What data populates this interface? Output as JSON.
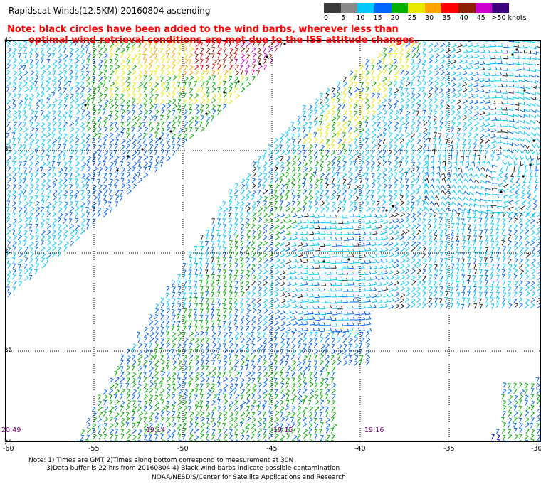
{
  "header": {
    "title": "Rapidscat Winds(12.5KM) 20160804 ascending",
    "note_line1": "Note: black circles have been added to the wind barbs, wherever less than",
    "note_line2": "optimal wind retrieval conditions are met due to the ISS attitude changes."
  },
  "legend": {
    "labels": [
      "0",
      "5",
      "10",
      "15",
      "20",
      "25",
      "30",
      "35",
      "40",
      "45",
      ">50 knots"
    ],
    "colors": [
      "#3a3a3a",
      "#8a8a8a",
      "#00c8ff",
      "#0066ff",
      "#00b000",
      "#e8e800",
      "#ffa500",
      "#ff0000",
      "#8b2000",
      "#cc00cc",
      "#3a0080"
    ]
  },
  "map": {
    "x_ticks": [
      "-60",
      "-55",
      "-50",
      "-45",
      "-40",
      "-35",
      "-30"
    ],
    "y_ticks": [
      "40",
      "35",
      "30",
      "25",
      "20"
    ],
    "lon_range": [
      -60,
      -30
    ],
    "lat_range": [
      20,
      40
    ],
    "gridlines": true,
    "grid_style": "dotted",
    "swath_times": [
      "20:49",
      "19:14",
      "19:15",
      "19:16"
    ]
  },
  "footer": {
    "line1": "Note: 1) Times are GMT 2)Times along bottom correspond to measurement at 30N",
    "line2": "3)Data buffer is 22 hrs from 20160804 4) Black wind barbs indicate possible contamination",
    "line3": "NOAA/NESDIS/Center for Satellite Applications and Research"
  }
}
